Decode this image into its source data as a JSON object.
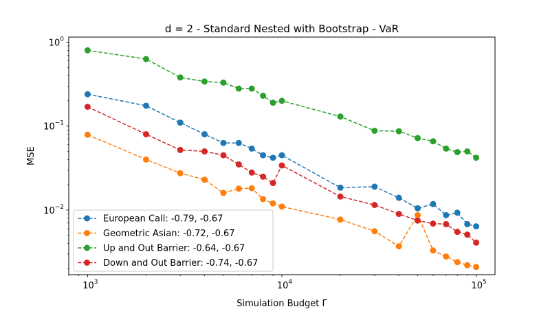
{
  "chart_data": {
    "type": "line",
    "title": "d = 2 - Standard Nested with Bootstrap - VaR",
    "xlabel": "Simulation Budget Γ",
    "ylabel": "MSE",
    "xscale": "log",
    "yscale": "log",
    "xlim": [
      800,
      125000
    ],
    "ylim": [
      0.0017,
      1.15
    ],
    "x_ticks": [
      {
        "value": 1000,
        "base": "10",
        "exp": "3"
      },
      {
        "value": 10000,
        "base": "10",
        "exp": "4"
      },
      {
        "value": 100000,
        "base": "10",
        "exp": "5"
      }
    ],
    "y_ticks": [
      {
        "value": 0.01,
        "base": "10",
        "exp": "−2"
      },
      {
        "value": 0.1,
        "base": "10",
        "exp": "−1"
      },
      {
        "value": 1,
        "base": "10",
        "exp": "0"
      }
    ],
    "grid": false,
    "legend_position": "lower-left",
    "x": [
      1000,
      2000,
      3000,
      4000,
      5000,
      6000,
      7000,
      8000,
      9000,
      10000,
      20000,
      30000,
      40000,
      50000,
      60000,
      70000,
      80000,
      90000,
      100000
    ],
    "series": [
      {
        "name": "European Call: -0.79, -0.67",
        "color": "#1f77b4",
        "values": [
          0.24,
          0.175,
          0.11,
          0.08,
          0.063,
          0.063,
          0.054,
          0.045,
          0.042,
          0.045,
          0.0185,
          0.019,
          0.014,
          0.0105,
          0.0118,
          0.0087,
          0.0093,
          0.0068,
          0.0064
        ]
      },
      {
        "name": "Geometric Asian: -0.72, -0.67",
        "color": "#ff7f0e",
        "values": [
          0.079,
          0.04,
          0.0275,
          0.023,
          0.016,
          0.018,
          0.0182,
          0.0135,
          0.012,
          0.011,
          0.0077,
          0.0056,
          0.0037,
          0.0087,
          0.0033,
          0.0028,
          0.0024,
          0.0022,
          0.0021
        ]
      },
      {
        "name": "Up and Out Barrier: -0.64, -0.67",
        "color": "#2ca02c",
        "values": [
          0.8,
          0.63,
          0.38,
          0.34,
          0.33,
          0.28,
          0.28,
          0.23,
          0.19,
          0.2,
          0.13,
          0.088,
          0.087,
          0.072,
          0.066,
          0.054,
          0.049,
          0.05,
          0.042
        ]
      },
      {
        "name": "Down and Out Barrier: -0.74, -0.67",
        "color": "#d62728",
        "values": [
          0.17,
          0.08,
          0.052,
          0.05,
          0.045,
          0.035,
          0.028,
          0.025,
          0.021,
          0.034,
          0.0145,
          0.0115,
          0.009,
          0.0075,
          0.0069,
          0.0068,
          0.0055,
          0.0051,
          0.0041
        ]
      }
    ]
  }
}
